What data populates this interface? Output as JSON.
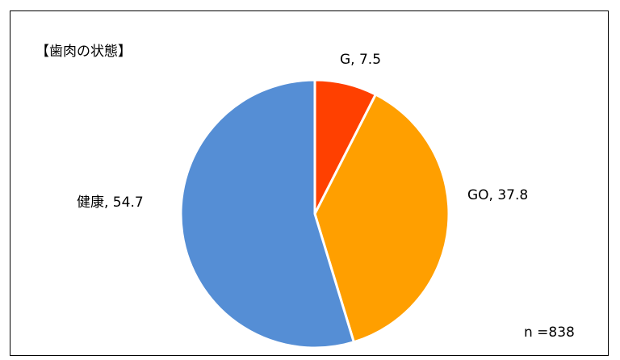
{
  "chart_data": {
    "type": "pie",
    "title": "【歯肉の状態】",
    "note": "n =838",
    "slices": [
      {
        "name": "G",
        "value": 7.5,
        "label": "G, 7.5",
        "color": "#ff4000"
      },
      {
        "name": "GO",
        "value": 37.8,
        "label": "GO, 37.8",
        "color": "#ff9f00"
      },
      {
        "name": "健康",
        "value": 54.7,
        "label": "健康, 54.7",
        "color": "#558ed5"
      }
    ],
    "start": "12 o'clock",
    "direction": "clockwise",
    "legend": "none"
  }
}
